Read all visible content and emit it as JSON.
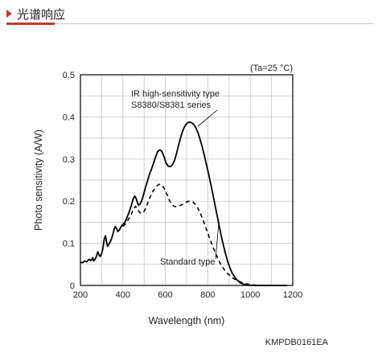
{
  "header": {
    "title": "光谱响应"
  },
  "chart_data": {
    "type": "line",
    "title": "",
    "condition": "(Ta=25 °C)",
    "xlabel": "Wavelength (nm)",
    "ylabel": "Photo sensitivity (A/W)",
    "xlim": [
      200,
      1200
    ],
    "ylim": [
      0,
      0.5
    ],
    "xticks": [
      200,
      400,
      600,
      800,
      1000,
      1200
    ],
    "yticks": [
      0,
      0.1,
      0.2,
      0.3,
      0.4,
      0.5
    ],
    "grid": true,
    "series": [
      {
        "name": "IR high-sensitivity type S8380/S8381 series",
        "style": "solid",
        "x": [
          200,
          210,
          220,
          230,
          240,
          250,
          258,
          262,
          270,
          276,
          282,
          288,
          294,
          300,
          306,
          312,
          318,
          322,
          328,
          334,
          340,
          346,
          352,
          358,
          364,
          370,
          376,
          384,
          392,
          400,
          410,
          420,
          430,
          440,
          448,
          456,
          462,
          468,
          474,
          480,
          488,
          496,
          504,
          514,
          524,
          534,
          544,
          554,
          564,
          574,
          584,
          594,
          604,
          614,
          624,
          634,
          644,
          654,
          664,
          674,
          684,
          694,
          704,
          714,
          724,
          734,
          744,
          754,
          764,
          774,
          784,
          794,
          804,
          814,
          824,
          834,
          844,
          854,
          864,
          874,
          884,
          894,
          904,
          914,
          924,
          934,
          944,
          954,
          964,
          974,
          984,
          994,
          1004,
          1014,
          1024,
          1034,
          1044,
          1054,
          1064,
          1074,
          1084,
          1094,
          1104,
          1114,
          1124,
          1134,
          1144,
          1154,
          1164,
          1174
        ],
        "y": [
          0.055,
          0.054,
          0.058,
          0.056,
          0.062,
          0.059,
          0.066,
          0.058,
          0.063,
          0.07,
          0.08,
          0.072,
          0.069,
          0.076,
          0.088,
          0.11,
          0.118,
          0.105,
          0.093,
          0.098,
          0.103,
          0.11,
          0.12,
          0.132,
          0.14,
          0.135,
          0.128,
          0.132,
          0.14,
          0.145,
          0.15,
          0.162,
          0.175,
          0.19,
          0.205,
          0.212,
          0.207,
          0.197,
          0.19,
          0.193,
          0.2,
          0.213,
          0.228,
          0.245,
          0.262,
          0.275,
          0.29,
          0.305,
          0.318,
          0.322,
          0.318,
          0.305,
          0.29,
          0.283,
          0.282,
          0.287,
          0.298,
          0.316,
          0.336,
          0.355,
          0.37,
          0.38,
          0.386,
          0.388,
          0.386,
          0.382,
          0.374,
          0.362,
          0.346,
          0.328,
          0.308,
          0.286,
          0.264,
          0.24,
          0.216,
          0.19,
          0.166,
          0.14,
          0.116,
          0.094,
          0.074,
          0.056,
          0.042,
          0.03,
          0.022,
          0.015,
          0.01,
          0.006,
          0.004,
          0.002,
          0.001,
          0.0005,
          0.0002,
          0.0001,
          0.0,
          0.0,
          0.0,
          0.0,
          0.0,
          0.0,
          0.0,
          0.0,
          0.0,
          0.0,
          0.0,
          0.0,
          0.0,
          0.0,
          0.0,
          0.0
        ]
      },
      {
        "name": "Standard type",
        "style": "dashed",
        "x": [
          400,
          410,
          420,
          430,
          440,
          450,
          460,
          470,
          480,
          490,
          500,
          510,
          520,
          530,
          540,
          550,
          560,
          570,
          580,
          590,
          600,
          610,
          620,
          630,
          640,
          650,
          660,
          670,
          680,
          690,
          700,
          710,
          720,
          730,
          740,
          750,
          760,
          770,
          780,
          790,
          800,
          810,
          820,
          830,
          840,
          850,
          860,
          870,
          880,
          890,
          900,
          910,
          920,
          930,
          940,
          950,
          960,
          970,
          980,
          990,
          1000,
          1010,
          1020,
          1030,
          1040,
          1050,
          1060,
          1070,
          1080,
          1090,
          1100
        ],
        "y": [
          0.14,
          0.145,
          0.152,
          0.16,
          0.17,
          0.182,
          0.188,
          0.18,
          0.173,
          0.171,
          0.176,
          0.186,
          0.2,
          0.212,
          0.222,
          0.23,
          0.236,
          0.24,
          0.239,
          0.234,
          0.225,
          0.213,
          0.201,
          0.193,
          0.188,
          0.187,
          0.188,
          0.19,
          0.192,
          0.195,
          0.198,
          0.2,
          0.2,
          0.198,
          0.193,
          0.186,
          0.176,
          0.165,
          0.152,
          0.138,
          0.124,
          0.11,
          0.097,
          0.084,
          0.072,
          0.061,
          0.051,
          0.043,
          0.036,
          0.03,
          0.025,
          0.021,
          0.017,
          0.014,
          0.011,
          0.009,
          0.007,
          0.0055,
          0.004,
          0.003,
          0.002,
          0.0015,
          0.001,
          0.0007,
          0.0005,
          0.0003,
          0.0002,
          0.0001,
          0.0,
          0.0,
          0.0
        ]
      }
    ],
    "annotations": [
      {
        "text_lines": [
          "IR high-sensitivity type",
          "S8380/S8381 series"
        ],
        "points_to": {
          "x": 760,
          "y": 0.385
        }
      },
      {
        "text_lines": [
          "Standard type"
        ],
        "points_to": {
          "x": 860,
          "y": 0.16
        }
      }
    ]
  },
  "footer": {
    "figure_code": "KMPDB0161EA"
  }
}
